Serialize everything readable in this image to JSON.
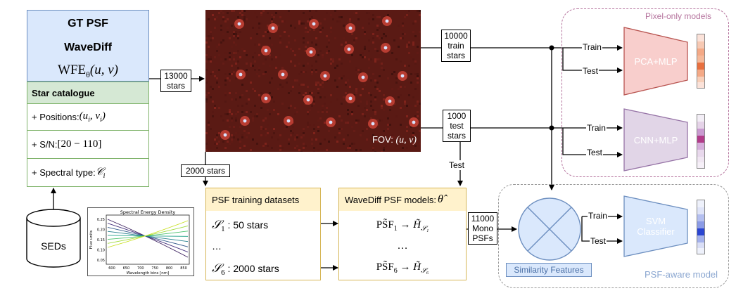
{
  "gt_psf": {
    "title": "GT PSF",
    "model": "WaveDiff",
    "wfe": "WFE",
    "wfe_sub": "θ",
    "wfe_args": "(u, v)"
  },
  "catalogue": {
    "title": "Star catalogue",
    "positions_label": "+ Positions: ",
    "positions_math": "(u",
    "positions_math_sub1": "i",
    "positions_math_mid": ", v",
    "positions_math_sub2": "i",
    "positions_math_end": ")",
    "sn_label": "+ S/N: ",
    "sn_math": "[20 − 110]",
    "spectral_label": "+ Spectral type: ",
    "spectral_math": "𝒞",
    "spectral_sub": "i"
  },
  "seds": {
    "label": "SEDs"
  },
  "sed_plot": {
    "title": "Spectral Energy Density",
    "xlabel": "Wavelength bins [nm]",
    "ylabel": "Flux units",
    "xticks": [
      "600",
      "650",
      "700",
      "750",
      "800",
      "850"
    ],
    "yticks": [
      "0.25",
      "0.20",
      "0.15",
      "0.10",
      "0.05"
    ],
    "colors": [
      "#3b1f5e",
      "#46327e",
      "#365c8d",
      "#277f8e",
      "#1fa187",
      "#4ac16d",
      "#9fda3a",
      "#c8e020"
    ]
  },
  "fov": {
    "label": "FOV: ",
    "math": "(u, v)"
  },
  "labels": {
    "stars_13000": [
      "13000",
      "stars"
    ],
    "stars_2000": "2000 stars",
    "train_10000": [
      "10000",
      "train",
      "stars"
    ],
    "test_1000": [
      "1000",
      "test",
      "stars"
    ],
    "mono_11000": [
      "11000",
      "Mono",
      "PSFs"
    ],
    "test_below": "Test",
    "train": "Train",
    "test": "Test"
  },
  "training_datasets": {
    "title": "PSF training datasets",
    "rows": [
      {
        "math": "𝒮",
        "sub": "1",
        "text": " : 50 stars"
      },
      {
        "math": "…",
        "sub": "",
        "text": ""
      },
      {
        "math": "𝒮",
        "sub": "6",
        "text": " :  2000 stars"
      }
    ]
  },
  "wavediff_models": {
    "title": "WaveDiff PSF models: ",
    "title_math": "θ̂",
    "rows": [
      {
        "lhs": "PS̃F",
        "sub": "1",
        "arrow": " → ",
        "rhs": "H̃",
        "rhs_sub": "𝒮₁"
      },
      {
        "lhs": "…",
        "sub": "",
        "arrow": "",
        "rhs": "",
        "rhs_sub": ""
      },
      {
        "lhs": "PS̃F",
        "sub": "6",
        "arrow": " → ",
        "rhs": "H̃",
        "rhs_sub": "𝒮₆"
      }
    ]
  },
  "regions": {
    "pixel_only": "Pixel-only models",
    "psf_aware": "PSF-aware model",
    "similarity": "Similarity Features"
  },
  "models": {
    "pca": "PCA+MLP",
    "cnn": "CNN+MLP",
    "svm": [
      "SVM",
      "Classifier"
    ]
  },
  "colors": {
    "gt_blue": "#dae8fc",
    "catalogue_green": "#d5e8d4",
    "catalogue_border": "#82b366",
    "dataset_yellow": "#fff2cc",
    "dataset_border": "#d6b656",
    "pca_red": "#f8cecc",
    "pca_border": "#b85450",
    "cnn_purple": "#e1d5e7",
    "cnn_border": "#9673a6",
    "svm_blue": "#dae8fc",
    "svm_border": "#6c8ebf",
    "pixel_region": "#b5739d",
    "psf_region": "#999999"
  }
}
